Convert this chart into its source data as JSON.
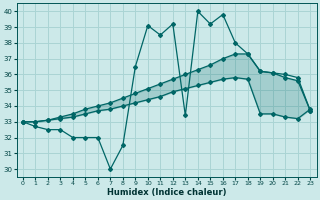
{
  "xlabel": "Humidex (Indice chaleur)",
  "background_color": "#cce9e9",
  "grid_color": "#aad4d4",
  "line_color": "#006666",
  "xlim": [
    -0.5,
    23.5
  ],
  "ylim": [
    29.5,
    40.5
  ],
  "yticks": [
    30,
    31,
    32,
    33,
    34,
    35,
    36,
    37,
    38,
    39,
    40
  ],
  "xticks": [
    0,
    1,
    2,
    3,
    4,
    5,
    6,
    7,
    8,
    9,
    10,
    11,
    12,
    13,
    14,
    15,
    16,
    17,
    18,
    19,
    20,
    21,
    22,
    23
  ],
  "line1_x": [
    0,
    1,
    2,
    3,
    4,
    5,
    6,
    7,
    8,
    9,
    10,
    11,
    12,
    13,
    14,
    15,
    16,
    17,
    18,
    19,
    20,
    21,
    22,
    23
  ],
  "line1_y": [
    33.0,
    32.7,
    32.5,
    32.5,
    32.0,
    32.0,
    32.0,
    30.0,
    31.5,
    36.5,
    39.1,
    38.5,
    39.2,
    33.4,
    40.0,
    39.2,
    39.8,
    38.0,
    37.3,
    36.2,
    36.1,
    36.0,
    35.8,
    33.7
  ],
  "line2_x": [
    0,
    1,
    2,
    3,
    4,
    5,
    6,
    7,
    8,
    9,
    10,
    11,
    12,
    13,
    14,
    15,
    16,
    17,
    18,
    19,
    20,
    21,
    22,
    23
  ],
  "line2_y": [
    33.0,
    33.0,
    33.1,
    33.3,
    33.5,
    33.8,
    34.0,
    34.2,
    34.5,
    34.8,
    35.1,
    35.4,
    35.7,
    36.0,
    36.3,
    36.6,
    37.0,
    37.3,
    37.3,
    36.2,
    36.1,
    35.8,
    35.6,
    33.7
  ],
  "line3_x": [
    0,
    1,
    2,
    3,
    4,
    5,
    6,
    7,
    8,
    9,
    10,
    11,
    12,
    13,
    14,
    15,
    16,
    17,
    18,
    19,
    20,
    21,
    22,
    23
  ],
  "line3_y": [
    33.0,
    33.0,
    33.1,
    33.2,
    33.3,
    33.5,
    33.7,
    33.8,
    34.0,
    34.2,
    34.4,
    34.6,
    34.9,
    35.1,
    35.3,
    35.5,
    35.7,
    35.8,
    35.7,
    33.5,
    33.5,
    33.3,
    33.2,
    33.8
  ]
}
